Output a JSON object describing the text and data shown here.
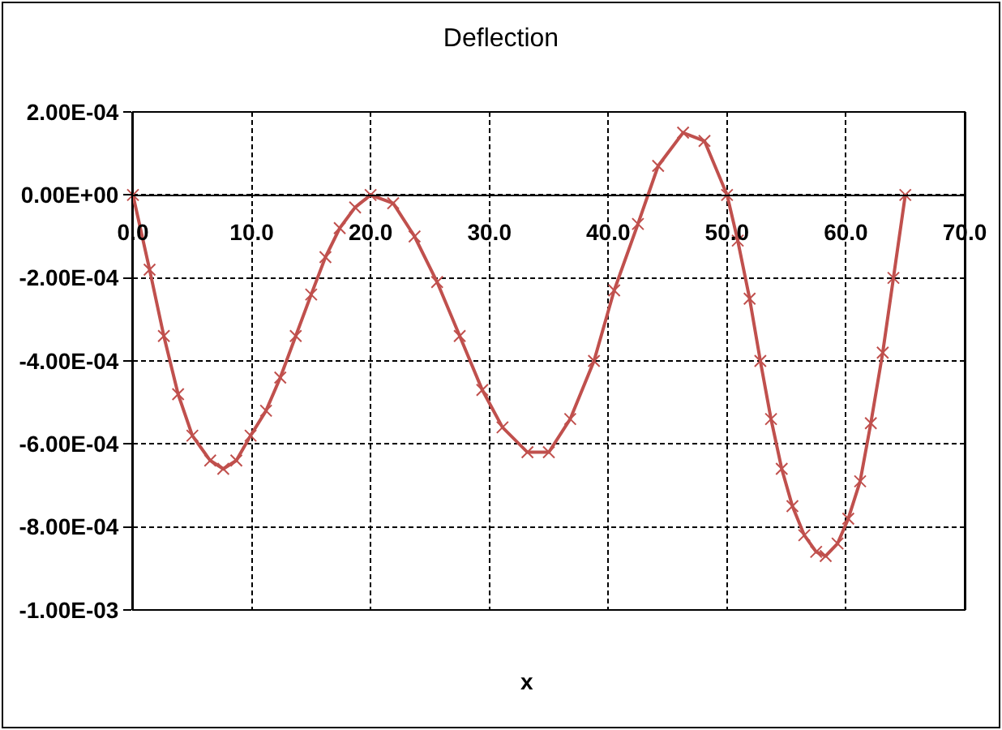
{
  "chart_data": {
    "type": "line",
    "title": "Deflection",
    "xlabel": "x",
    "x": [
      0,
      1.4,
      2.6,
      3.8,
      5.0,
      6.5,
      7.6,
      8.7,
      9.9,
      11.2,
      12.4,
      13.7,
      15.0,
      16.2,
      17.4,
      18.7,
      20.0,
      21.9,
      23.7,
      25.6,
      27.5,
      29.4,
      31.1,
      33.2,
      35.0,
      36.8,
      38.8,
      40.5,
      42.5,
      44.2,
      46.3,
      48.1,
      50.0,
      50.9,
      51.9,
      52.8,
      53.7,
      54.6,
      55.5,
      56.5,
      57.5,
      58.3,
      59.3,
      60.2,
      61.2,
      62.1,
      63.1,
      64.0,
      65.0
    ],
    "series": [
      {
        "color": "#c0504d",
        "values": [
          0,
          -0.00018,
          -0.00034,
          -0.00048,
          -0.00058,
          -0.00064,
          -0.00066,
          -0.00064,
          -0.00058,
          -0.00052,
          -0.00044,
          -0.00034,
          -0.00024,
          -0.00015,
          -8e-05,
          -3e-05,
          0,
          -2e-05,
          -0.0001,
          -0.00021,
          -0.00034,
          -0.00047,
          -0.00056,
          -0.00062,
          -0.00062,
          -0.00054,
          -0.0004,
          -0.00023,
          -7e-05,
          7e-05,
          0.00015,
          0.00013,
          0,
          -0.00011,
          -0.00025,
          -0.0004,
          -0.00054,
          -0.00066,
          -0.00075,
          -0.00082,
          -0.00086,
          -0.00087,
          -0.00084,
          -0.00078,
          -0.00069,
          -0.00055,
          -0.00038,
          -0.0002,
          0
        ]
      }
    ],
    "xlim": [
      0,
      70
    ],
    "xticks": [
      {
        "value": 0,
        "label": "0.0"
      },
      {
        "value": 10,
        "label": "10.0"
      },
      {
        "value": 20,
        "label": "20.0"
      },
      {
        "value": 30,
        "label": "30.0"
      },
      {
        "value": 40,
        "label": "40.0"
      },
      {
        "value": 50,
        "label": "50.0"
      },
      {
        "value": 60,
        "label": "60.0"
      },
      {
        "value": 70,
        "label": "70.0"
      }
    ],
    "ylim": [
      -0.001,
      0.0002
    ],
    "yticks": [
      {
        "value": 0.0002,
        "label": "2.00E-04"
      },
      {
        "value": 0,
        "label": "0.00E+00"
      },
      {
        "value": -0.0002,
        "label": "-2.00E-04"
      },
      {
        "value": -0.0004,
        "label": "-4.00E-04"
      },
      {
        "value": -0.0006,
        "label": "-6.00E-04"
      },
      {
        "value": -0.0008,
        "label": "-8.00E-04"
      },
      {
        "value": -0.001,
        "label": "-1.00E-03"
      }
    ],
    "grid": true,
    "legend": false,
    "marker": "cross",
    "line_style": "solid"
  }
}
